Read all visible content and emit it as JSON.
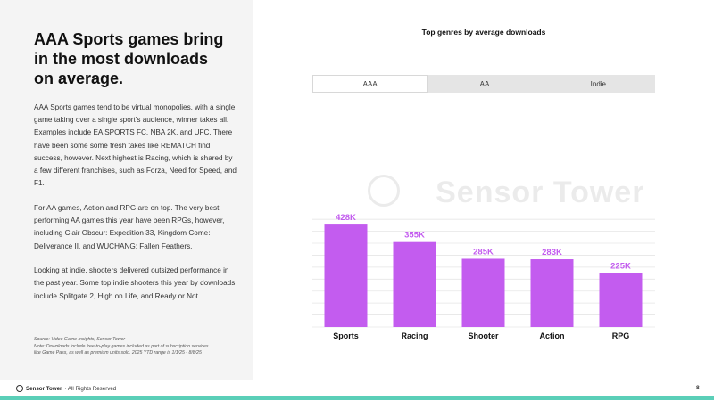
{
  "headline": {
    "line1": "AAA Sports games bring",
    "line2": "in the most downloads",
    "line3": "on average."
  },
  "body": {
    "p1": "AAA Sports games tend to be virtual monopolies, with a single game taking over a single sport's audience, winner takes all. Examples include EA SPORTS FC, NBA 2K, and UFC. There have been some some fresh takes like REMATCH find success, however. Next highest is Racing, which is shared by a few different franchises, such as Forza, Need for Speed, and F1.",
    "p2": "For AA games, Action and RPG are on top. The very best performing AA games this year have been RPGs, however, including Clair Obscur: Expedition 33, Kingdom Come: Deliverance II, and WUCHANG: Fallen Feathers.",
    "p3": "Looking at indie, shooters delivered outsized performance in the past year. Some top indie shooters this year by downloads include Splitgate 2, High on Life, and Ready or Not."
  },
  "source": {
    "line1": "Source: Video Game Insights, Sensor Tower",
    "line2": "Note: Downloads include free-to-play games included as part of subscription services",
    "line3": "like Game Pass, as well as premium units sold. 2025 YTD range is 1/1/25 - 8/8/25"
  },
  "chart": {
    "title": "Top genres by average downloads",
    "tabs": [
      "AAA",
      "AA",
      "Indie"
    ],
    "active_tab": "AAA"
  },
  "chart_data": {
    "type": "bar",
    "title": "Top genres by average downloads",
    "categories": [
      "Sports",
      "Racing",
      "Shooter",
      "Action",
      "RPG"
    ],
    "values": [
      428,
      355,
      285,
      283,
      225
    ],
    "value_labels": [
      "428K",
      "355K",
      "285K",
      "283K",
      "225K"
    ],
    "unit": "K downloads",
    "xlabel": "",
    "ylabel": "",
    "ylim": [
      0,
      480
    ],
    "grid": true,
    "legend": "none",
    "bar_color": "#c35cef",
    "label_color": "#c35cef"
  },
  "watermark": "Sensor Tower",
  "footer": {
    "brand": "Sensor Tower",
    "rights": "· All Rights Reserved",
    "page_number": "8"
  },
  "colors": {
    "accent_bar": "#c35cef",
    "footer_stripe": "#5bcfb8",
    "panel_bg": "#f4f4f4"
  }
}
